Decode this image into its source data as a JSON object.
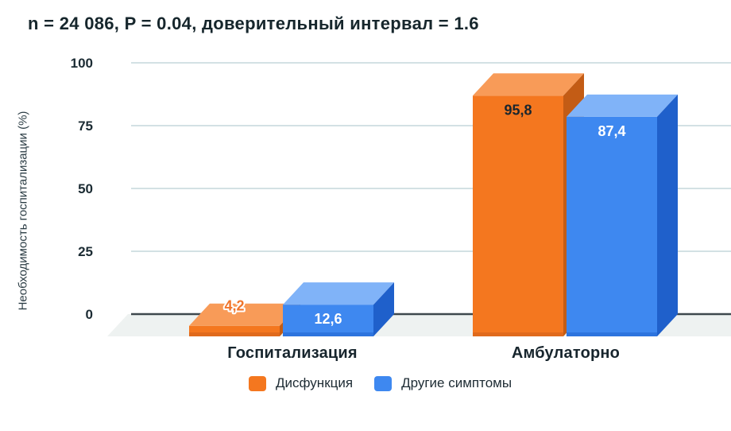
{
  "chart_data": {
    "type": "bar",
    "style": "3d-column",
    "title": "n = 24 086, P = 0.04, доверительный интервал = 1.6",
    "ylabel": "Необходимость госпитализации (%)",
    "xlabel": "",
    "categories": [
      "Госпитализация",
      "Амбулаторно"
    ],
    "series": [
      {
        "name": "Дисфункция",
        "values": [
          4.2,
          95.8
        ],
        "value_labels": [
          "4,2",
          "95,8"
        ],
        "color": "#F4771F",
        "top_color": "#F89B58",
        "side_color": "#C35C15",
        "bottom_edge_color": "#E06A1C",
        "value_label_colors": [
          "#F0752B",
          "#1A262E"
        ],
        "value_label_halos": [
          "#FFFFFF",
          null
        ]
      },
      {
        "name": "Другие симптомы",
        "values": [
          12.6,
          87.4
        ],
        "value_labels": [
          "12,6",
          "87,4"
        ],
        "color": "#3E88F0",
        "top_color": "#80B3F8",
        "side_color": "#1F60CB",
        "bottom_edge_color": "#2D74DE",
        "value_label_colors": [
          "#FFFFFF",
          "#FFFFFF"
        ],
        "value_label_halos": [
          null,
          null
        ]
      }
    ],
    "yticks": [
      0,
      25,
      50,
      75,
      100
    ],
    "ylim": [
      0,
      100
    ],
    "grid": true,
    "legend_position": "bottom",
    "axis_colors": {
      "gridline": "#D3E1E4",
      "baseline": "#3E484D",
      "floor": "#EEF2F1",
      "tick_text": "#1B2B33"
    }
  },
  "legend": {
    "items": [
      {
        "label": "Дисфункция",
        "color": "#F4771F"
      },
      {
        "label": "Другие симптомы",
        "color": "#3E88F0"
      }
    ]
  }
}
